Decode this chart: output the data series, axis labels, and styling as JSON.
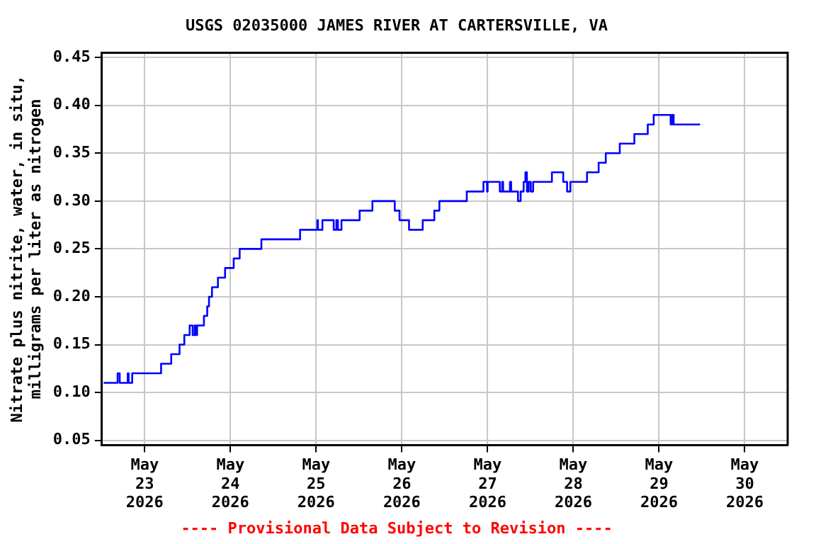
{
  "chart_data": {
    "type": "step",
    "title": "USGS 02035000 JAMES RIVER AT CARTERSVILLE, VA",
    "ylabel": "Nitrate plus nitrite, water, in situ, milligrams per liter as nitrogen",
    "annotations": [
      "---- Provisional Data Subject to Revision ----"
    ],
    "x": [
      "2026-05-22T12:30",
      "2026-05-22T16:25",
      "2026-05-22T17:00",
      "2026-05-22T19:15",
      "2026-05-22T19:30",
      "2026-05-22T20:30",
      "2026-05-23T04:35",
      "2026-05-23T07:25",
      "2026-05-23T09:45",
      "2026-05-23T11:05",
      "2026-05-23T12:35",
      "2026-05-23T13:25",
      "2026-05-23T14:00",
      "2026-05-23T14:20",
      "2026-05-23T14:40",
      "2026-05-23T16:35",
      "2026-05-23T17:30",
      "2026-05-23T18:00",
      "2026-05-23T18:50",
      "2026-05-23T20:30",
      "2026-05-23T22:30",
      "2026-05-24T00:55",
      "2026-05-24T02:35",
      "2026-05-24T08:40",
      "2026-05-24T19:30",
      "2026-05-25T00:20",
      "2026-05-25T00:30",
      "2026-05-25T01:45",
      "2026-05-25T04:55",
      "2026-05-25T05:40",
      "2026-05-25T06:05",
      "2026-05-25T07:05",
      "2026-05-25T12:10",
      "2026-05-25T15:45",
      "2026-05-25T22:00",
      "2026-05-25T23:20",
      "2026-05-26T02:00",
      "2026-05-26T05:50",
      "2026-05-26T09:05",
      "2026-05-26T10:30",
      "2026-05-26T18:10",
      "2026-05-26T22:50",
      "2026-05-26T23:50",
      "2026-05-27T00:00",
      "2026-05-27T03:25",
      "2026-05-27T04:05",
      "2026-05-27T04:20",
      "2026-05-27T06:15",
      "2026-05-27T06:35",
      "2026-05-27T08:30",
      "2026-05-27T09:15",
      "2026-05-27T10:05",
      "2026-05-27T10:35",
      "2026-05-27T11:00",
      "2026-05-27T11:30",
      "2026-05-27T12:05",
      "2026-05-27T12:45",
      "2026-05-27T18:00",
      "2026-05-27T21:10",
      "2026-05-27T22:15",
      "2026-05-27T23:10",
      "2026-05-28T03:50",
      "2026-05-28T07:05",
      "2026-05-28T09:05",
      "2026-05-28T13:00",
      "2026-05-28T17:05",
      "2026-05-28T20:50",
      "2026-05-28T22:30",
      "2026-05-29T03:15",
      "2026-05-29T03:40",
      "2026-05-29T04:05",
      "2026-05-29T11:30"
    ],
    "series": [
      {
        "color": "#0000ff",
        "values": [
          0.11,
          0.12,
          0.11,
          0.12,
          0.11,
          0.12,
          0.13,
          0.14,
          0.15,
          0.16,
          0.17,
          0.16,
          0.17,
          0.16,
          0.17,
          0.18,
          0.19,
          0.2,
          0.21,
          0.22,
          0.23,
          0.24,
          0.25,
          0.26,
          0.27,
          0.28,
          0.27,
          0.28,
          0.27,
          0.28,
          0.27,
          0.28,
          0.29,
          0.3,
          0.29,
          0.28,
          0.27,
          0.28,
          0.29,
          0.3,
          0.31,
          0.32,
          0.31,
          0.32,
          0.31,
          0.32,
          0.31,
          0.32,
          0.31,
          0.3,
          0.31,
          0.32,
          0.33,
          0.31,
          0.32,
          0.31,
          0.32,
          0.33,
          0.32,
          0.31,
          0.32,
          0.33,
          0.34,
          0.35,
          0.36,
          0.37,
          0.38,
          0.39,
          0.38,
          0.39,
          0.38,
          0.38
        ]
      }
    ],
    "xlim": [
      "2026-05-22T12:00",
      "2026-05-30T12:00"
    ],
    "xticks": [
      {
        "value": "2026-05-23",
        "label": "May 23 2026"
      },
      {
        "value": "2026-05-24",
        "label": "May 24 2026"
      },
      {
        "value": "2026-05-25",
        "label": "May 25 2026"
      },
      {
        "value": "2026-05-26",
        "label": "May 26 2026"
      },
      {
        "value": "2026-05-27",
        "label": "May 27 2026"
      },
      {
        "value": "2026-05-28",
        "label": "May 28 2026"
      },
      {
        "value": "2026-05-29",
        "label": "May 29 2026"
      },
      {
        "value": "2026-05-30",
        "label": "May 30 2026"
      }
    ],
    "ylim": [
      0.045,
      0.455
    ],
    "yticks": [
      0.05,
      {
        "value": 0.1,
        "label": "0.10"
      },
      0.15,
      {
        "value": 0.2,
        "label": "0.20"
      },
      0.25,
      {
        "value": 0.3,
        "label": "0.30"
      },
      0.35,
      {
        "value": 0.4,
        "label": "0.40"
      },
      0.45
    ],
    "grid": true,
    "legend": false,
    "marker": "none",
    "line_style": "solid"
  }
}
